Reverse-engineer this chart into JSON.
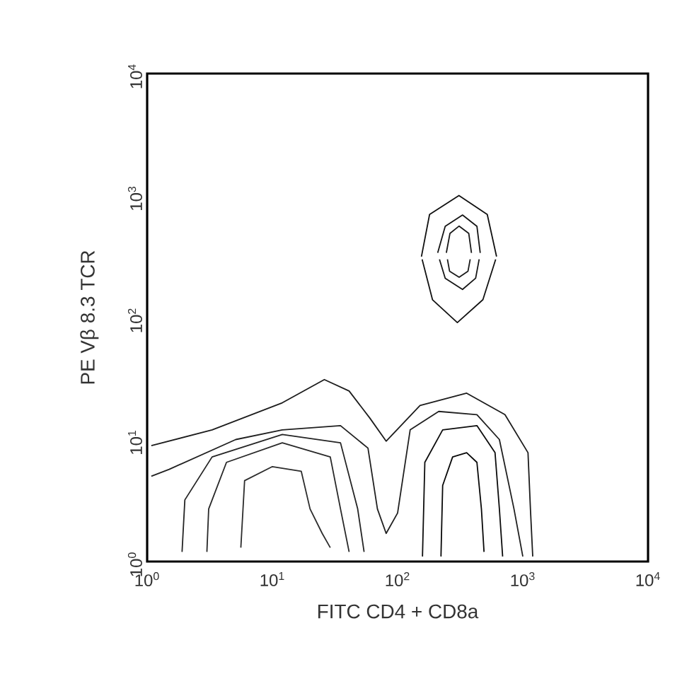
{
  "chart_data": {
    "type": "line",
    "xlabel": "FITC CD4 + CD8a",
    "ylabel": "PE Vβ 8.3 TCR",
    "log": "xy",
    "grid": false,
    "marker": "none",
    "line_style": "solid",
    "xlim": [
      1,
      10000
    ],
    "ylim": [
      1,
      10000
    ],
    "xticks": [
      {
        "value": 1,
        "label": "10$^{0}$"
      },
      {
        "value": 10,
        "label": "10$^{1}$"
      },
      {
        "value": 100,
        "label": "10$^{2}$"
      },
      {
        "value": 1000,
        "label": "10$^{3}$"
      },
      {
        "value": 10000,
        "label": "10$^{4}$"
      }
    ],
    "yticks": [
      {
        "value": 1,
        "label": "10$^{0}$"
      },
      {
        "value": 10,
        "label": "10$^{1}$"
      },
      {
        "value": 100,
        "label": "10$^{2}$"
      },
      {
        "value": 1000,
        "label": "10$^{3}$"
      },
      {
        "value": 10000,
        "label": "10$^{4}$"
      }
    ],
    "series": [
      {
        "color": "#101010",
        "x": [
          155,
          180,
          309,
          520,
          617
        ],
        "values": [
          316,
          700,
          1000,
          700,
          316
        ]
      },
      {
        "color": "#121212",
        "x": [
          157,
          190,
          300,
          480,
          607
        ],
        "values": [
          300,
          140,
          91,
          140,
          300
        ]
      },
      {
        "color": "#141414",
        "x": [
          209,
          240,
          330,
          430,
          457
        ],
        "values": [
          339,
          560,
          692,
          560,
          339
        ]
      },
      {
        "color": "#161616",
        "x": [
          216,
          240,
          330,
          420,
          448
        ],
        "values": [
          300,
          210,
          170,
          210,
          300
        ]
      },
      {
        "color": "#181818",
        "x": [
          245,
          262,
          310,
          370,
          389
        ],
        "values": [
          339,
          490,
          562,
          490,
          339
        ]
      },
      {
        "color": "#1a1a1a",
        "x": [
          250,
          260,
          310,
          365,
          380
        ],
        "values": [
          300,
          240,
          214,
          240,
          300
        ]
      },
      {
        "color": "#1c1c1c",
        "x": [
          1.08,
          3.3,
          12,
          26,
          41,
          60,
          81,
          151,
          356,
          720,
          1100,
          1150,
          1200
        ],
        "values": [
          8.9,
          12,
          20,
          31,
          25,
          15,
          9.7,
          19,
          24,
          16,
          7.8,
          2.7,
          1.1
        ]
      },
      {
        "color": "#202020",
        "x": [
          1.08,
          1.5,
          5.1,
          12,
          35,
          58,
          69,
          81,
          100,
          126,
          213,
          430,
          650,
          850,
          1000
        ],
        "values": [
          5.0,
          5.7,
          10,
          12,
          13,
          8.5,
          2.7,
          1.7,
          2.5,
          12,
          17,
          16,
          10,
          2.7,
          1.1
        ]
      },
      {
        "color": "#242424",
        "x": [
          1.9,
          2.0,
          3.3,
          12,
          35,
          48,
          54
        ],
        "values": [
          1.2,
          3.2,
          7.2,
          11,
          9.4,
          2.7,
          1.2
        ]
      },
      {
        "color": "#282828",
        "x": [
          3.0,
          3.1,
          4.3,
          12,
          29,
          35,
          41
        ],
        "values": [
          1.2,
          2.7,
          6.5,
          9.4,
          7.2,
          2.7,
          1.2
        ]
      },
      {
        "color": "#2c2c2c",
        "x": [
          5.6,
          6.0,
          10,
          17,
          20,
          25,
          29
        ],
        "values": [
          1.3,
          4.6,
          6.0,
          5.5,
          2.7,
          1.7,
          1.3
        ]
      },
      {
        "color": "#0c0c0c",
        "x": [
          158,
          165,
          229,
          430,
          600,
          650,
          690
        ],
        "values": [
          1.1,
          6.5,
          12,
          13,
          7.8,
          2.7,
          1.1
        ]
      },
      {
        "color": "#080808",
        "x": [
          222,
          229,
          275,
          356,
          430,
          467,
          490
        ],
        "values": [
          1.1,
          4.2,
          7.2,
          7.8,
          6.5,
          2.7,
          1.2
        ]
      }
    ]
  }
}
